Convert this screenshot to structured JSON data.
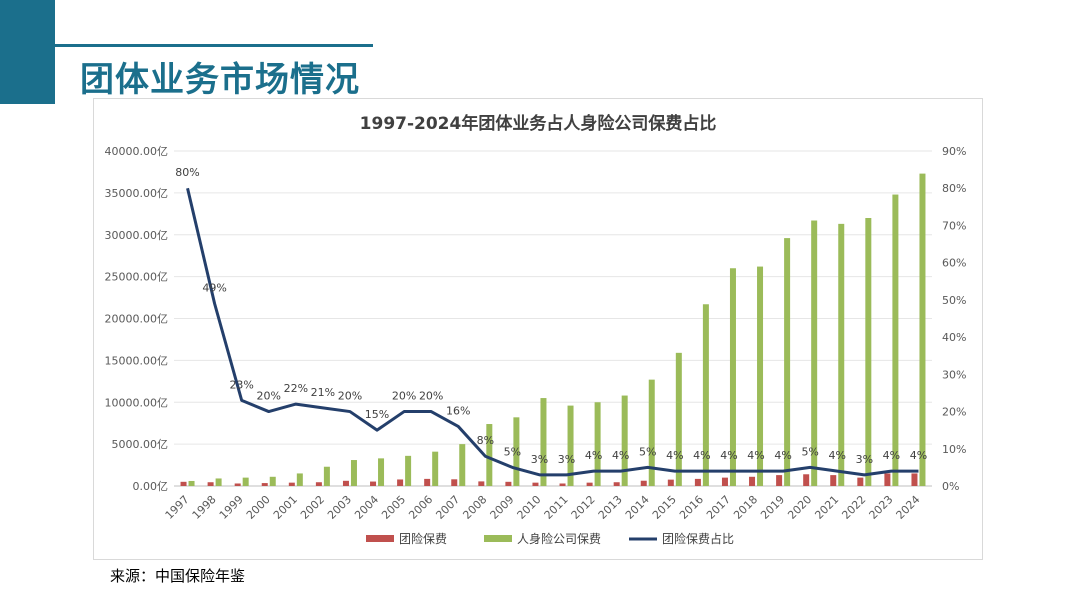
{
  "page": {
    "title": "团体业务市场情况",
    "source": "来源：中国保险年鉴"
  },
  "colors": {
    "accent": "#1b6f8c",
    "group_premium": "#c0504d",
    "life_premium": "#9bbb59",
    "share_line": "#243f6b"
  },
  "chart_data": {
    "type": "bar",
    "title": "1997-2024年团体业务占人身险公司保费占比",
    "categories": [
      "1997",
      "1998",
      "1999",
      "2000",
      "2001",
      "2002",
      "2003",
      "2004",
      "2005",
      "2006",
      "2007",
      "2008",
      "2009",
      "2010",
      "2011",
      "2012",
      "2013",
      "2014",
      "2015",
      "2016",
      "2017",
      "2018",
      "2019",
      "2020",
      "2021",
      "2022",
      "2023",
      "2024"
    ],
    "left_axis": {
      "ylim": [
        0,
        40000
      ],
      "ticks": [
        "0.00亿",
        "5000.00亿",
        "10000.00亿",
        "15000.00亿",
        "20000.00亿",
        "25000.00亿",
        "30000.00亿",
        "35000.00亿",
        "40000.00亿"
      ]
    },
    "right_axis": {
      "ylim": [
        0,
        90
      ],
      "ticks": [
        "0%",
        "10%",
        "20%",
        "30%",
        "40%",
        "50%",
        "60%",
        "70%",
        "80%",
        "90%"
      ]
    },
    "series": [
      {
        "name": "团险保费",
        "type": "bar",
        "axis": "left",
        "values": [
          500,
          450,
          300,
          350,
          400,
          450,
          620,
          530,
          780,
          850,
          800,
          550,
          500,
          400,
          300,
          400,
          450,
          630,
          760,
          850,
          1000,
          1100,
          1300,
          1400,
          1300,
          1000,
          1500,
          1500
        ]
      },
      {
        "name": "人身险公司保费",
        "type": "bar",
        "axis": "left",
        "values": [
          600,
          900,
          1000,
          1100,
          1500,
          2300,
          3100,
          3300,
          3600,
          4100,
          5000,
          7400,
          8200,
          10500,
          9600,
          10000,
          10800,
          12700,
          15900,
          21700,
          26000,
          26200,
          29600,
          31700,
          31300,
          32000,
          34800,
          37300
        ]
      },
      {
        "name": "团险保费占比",
        "type": "line",
        "axis": "right",
        "values": [
          80,
          49,
          23,
          20,
          22,
          21,
          20,
          15,
          20,
          20,
          16,
          8,
          5,
          3,
          3,
          4,
          4,
          5,
          4,
          4,
          4,
          4,
          4,
          5,
          4,
          3,
          4,
          4
        ],
        "labels": [
          "80%",
          "49%",
          "23%",
          "20%",
          "22%",
          "21%",
          "20%",
          "15%",
          "20%",
          "20%",
          "16%",
          "8%",
          "5%",
          "3%",
          "3%",
          "4%",
          "4%",
          "5%",
          "4%",
          "4%",
          "4%",
          "4%",
          "4%",
          "5%",
          "4%",
          "3%",
          "4%",
          "4%"
        ]
      }
    ],
    "legend": [
      "团险保费",
      "人身险公司保费",
      "团险保费占比"
    ],
    "legend_position": "bottom",
    "grid": true
  }
}
